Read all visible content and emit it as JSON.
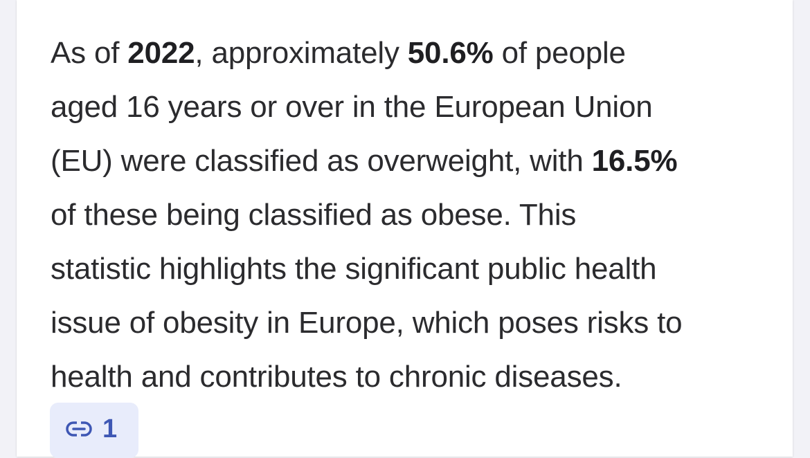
{
  "answer": {
    "lines": [
      [
        "As of ",
        "2022",
        ", approximately ",
        "50.6%",
        " of people"
      ],
      [
        "aged 16 years or over in the European Union"
      ],
      [
        "(EU) were classified as overweight, with ",
        "16.5%"
      ],
      [
        "of these being classified as obese. This"
      ],
      [
        "statistic highlights the significant public health"
      ],
      [
        "issue of obesity in Europe, which poses risks to"
      ],
      [
        "health and contributes to chronic diseases."
      ]
    ]
  },
  "source_chip": {
    "icon": "link-icon",
    "count": "1"
  },
  "colors": {
    "background": "#f2f2f7",
    "card": "#ffffff",
    "text": "#2b2b2e",
    "chip_bg": "#e8ecfb",
    "chip_accent": "#3e57b4"
  }
}
